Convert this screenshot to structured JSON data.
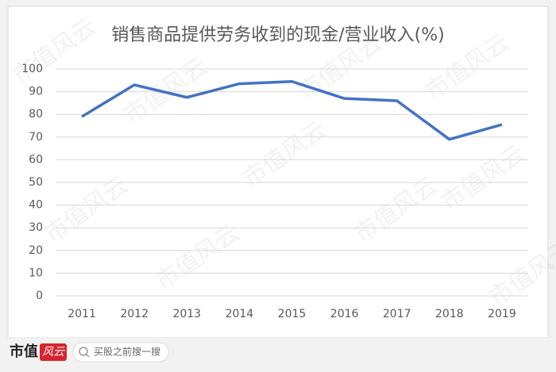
{
  "chart_data": {
    "type": "line",
    "title": "销售商品提供劳务收到的现金/营业收入(%)",
    "categories": [
      "2011",
      "2012",
      "2013",
      "2014",
      "2015",
      "2016",
      "2017",
      "2018",
      "2019"
    ],
    "series": [
      {
        "color": "#4472c4",
        "values": [
          79,
          93,
          87.5,
          93.5,
          94.5,
          87,
          86,
          69,
          75.5
        ]
      }
    ],
    "ylim": [
      0,
      100
    ],
    "yticks": [
      0,
      10,
      20,
      30,
      40,
      50,
      60,
      70,
      80,
      90,
      100
    ],
    "grid": true
  },
  "watermark": "市值风云",
  "footer": {
    "logo": "市值",
    "logo_badge": "风云",
    "search": "买股之前搜一搜"
  }
}
